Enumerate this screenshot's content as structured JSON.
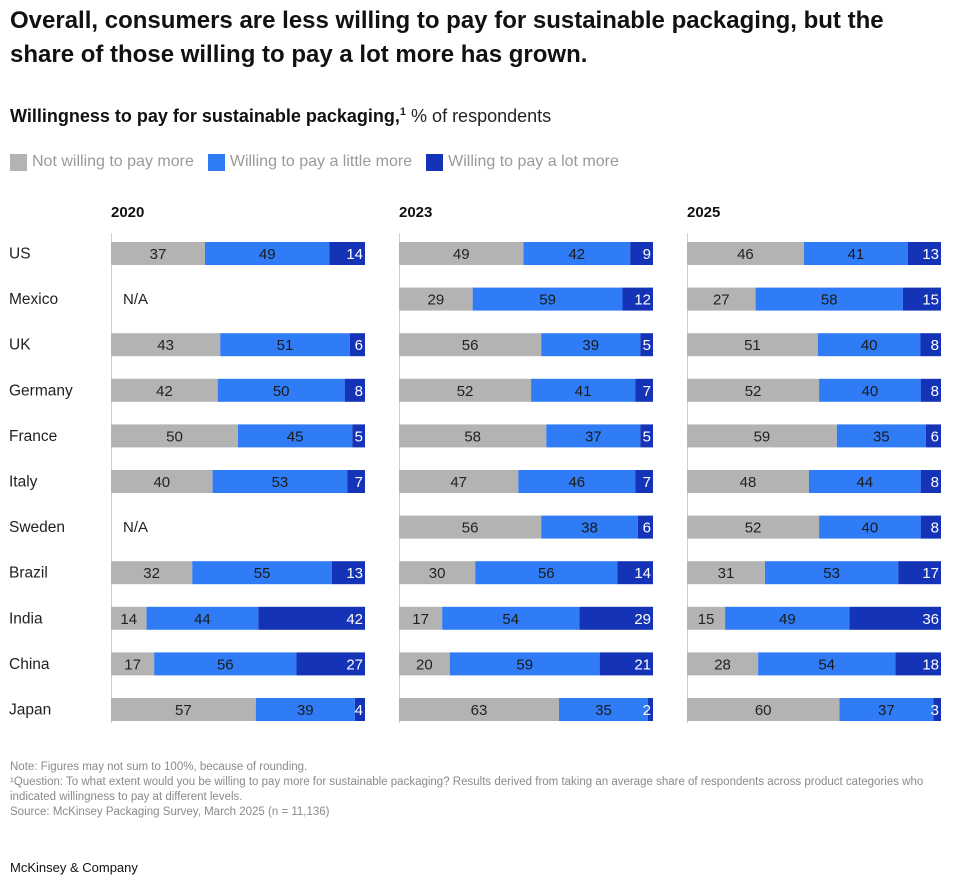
{
  "title": "Overall, consumers are less willing to pay for sustainable packaging, but the share of those willing to pay a lot more has grown.",
  "subtitle": {
    "bold": "Willingness to pay for sustainable packaging,",
    "sup": "1",
    "rest": " % of respondents"
  },
  "legend": [
    {
      "label": "Not willing to pay more",
      "color": "#b3b3b3"
    },
    {
      "label": "Willing to pay a little more",
      "color": "#2f7cf6"
    },
    {
      "label": "Willing to pay a lot more",
      "color": "#1533b7"
    }
  ],
  "chart_data": {
    "type": "stacked-bar",
    "na_label": "N/A",
    "series_names": [
      "Not willing to pay more",
      "Willing to pay a little more",
      "Willing to pay a lot more"
    ],
    "countries": [
      "US",
      "Mexico",
      "UK",
      "Germany",
      "France",
      "Italy",
      "Sweden",
      "Brazil",
      "India",
      "China",
      "Japan"
    ],
    "panels": [
      {
        "year": "2020",
        "rows": [
          [
            37,
            49,
            14
          ],
          null,
          [
            43,
            51,
            6
          ],
          [
            42,
            50,
            8
          ],
          [
            50,
            45,
            5
          ],
          [
            40,
            53,
            7
          ],
          null,
          [
            32,
            55,
            13
          ],
          [
            14,
            44,
            42
          ],
          [
            17,
            56,
            27
          ],
          [
            57,
            39,
            4
          ]
        ]
      },
      {
        "year": "2023",
        "rows": [
          [
            49,
            42,
            9
          ],
          [
            29,
            59,
            12
          ],
          [
            56,
            39,
            5
          ],
          [
            52,
            41,
            7
          ],
          [
            58,
            37,
            5
          ],
          [
            47,
            46,
            7
          ],
          [
            56,
            38,
            6
          ],
          [
            30,
            56,
            14
          ],
          [
            17,
            54,
            29
          ],
          [
            20,
            59,
            21
          ],
          [
            63,
            35,
            2
          ]
        ]
      },
      {
        "year": "2025",
        "rows": [
          [
            46,
            41,
            13
          ],
          [
            27,
            58,
            15
          ],
          [
            51,
            40,
            8
          ],
          [
            52,
            40,
            8
          ],
          [
            59,
            35,
            6
          ],
          [
            48,
            44,
            8
          ],
          [
            52,
            40,
            8
          ],
          [
            31,
            53,
            17
          ],
          [
            15,
            49,
            36
          ],
          [
            28,
            54,
            18
          ],
          [
            60,
            37,
            3
          ]
        ]
      }
    ]
  },
  "notes": {
    "note": "Note: Figures may not sum to 100%, because of rounding.",
    "question": "¹Question: To what extent would you be willing to pay more for sustainable packaging? Results derived from taking an average share of respondents across product categories who indicated willingness to pay at different levels.",
    "source": "Source: McKinsey Packaging Survey, March 2025 (n = 11,136)"
  },
  "brand": "McKinsey & Company"
}
